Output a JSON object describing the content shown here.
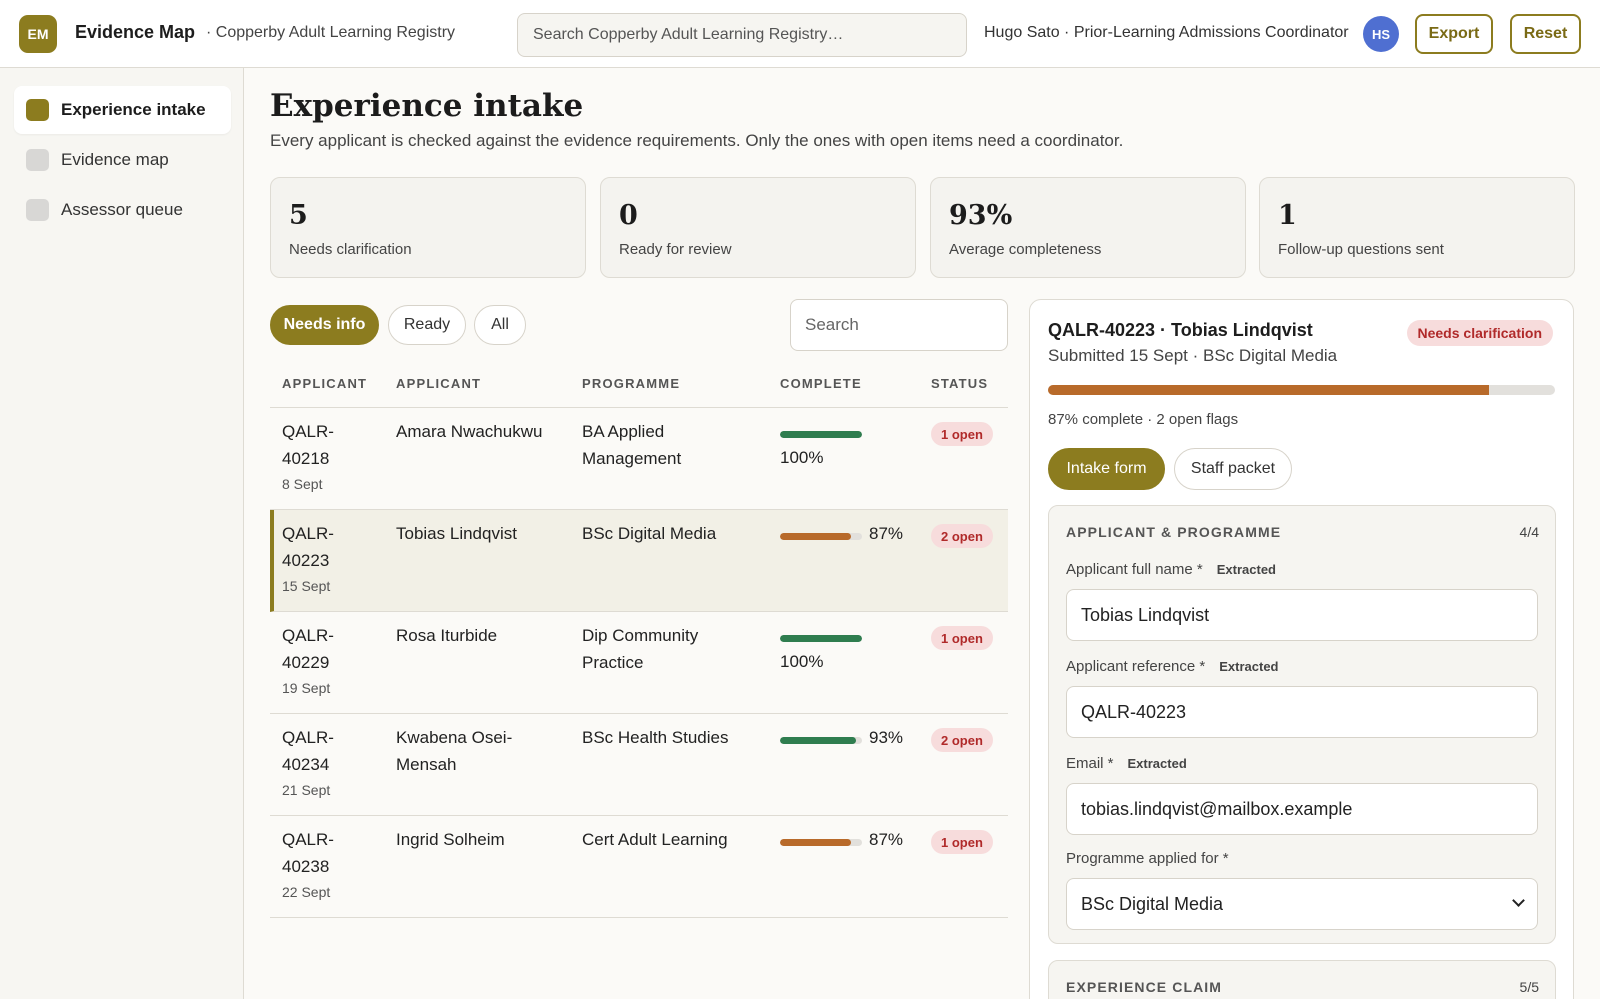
{
  "header": {
    "logo_initials": "EM",
    "app_name": "Evidence Map",
    "registry": "· Copperby Adult Learning Registry",
    "search_placeholder": "Search Copperby Adult Learning Registry…",
    "user": "Hugo Sato · Prior-Learning Admissions Coordinator",
    "avatar_initials": "HS",
    "export_label": "Export",
    "reset_label": "Reset"
  },
  "sidebar": {
    "items": [
      {
        "label": "Experience intake",
        "active": true
      },
      {
        "label": "Evidence map",
        "active": false
      },
      {
        "label": "Assessor queue",
        "active": false
      }
    ]
  },
  "page": {
    "title": "Experience intake",
    "subtitle": "Every applicant is checked against the evidence requirements. Only the ones with open items need a coordinator."
  },
  "stats": [
    {
      "value": "5",
      "label": "Needs clarification"
    },
    {
      "value": "0",
      "label": "Ready for review"
    },
    {
      "value": "93%",
      "label": "Average completeness"
    },
    {
      "value": "1",
      "label": "Follow-up questions sent"
    }
  ],
  "filters": {
    "chips": [
      {
        "label": "Needs info",
        "active": true
      },
      {
        "label": "Ready",
        "active": false
      },
      {
        "label": "All",
        "active": false
      }
    ],
    "search_placeholder": "Search"
  },
  "table": {
    "columns": [
      "APPLICANT",
      "APPLICANT",
      "PROGRAMME",
      "COMPLETE",
      "STATUS"
    ],
    "rows": [
      {
        "id": "QALR-40218",
        "id_line1": "QALR-",
        "id_line2": "40218",
        "date": "8 Sept",
        "name": "Amara Nwachukwu",
        "programme": "BA Applied Management",
        "complete": 100,
        "complete_label": "100%",
        "status": "1 open",
        "selected": false
      },
      {
        "id": "QALR-40223",
        "id_line1": "QALR-",
        "id_line2": "40223",
        "date": "15 Sept",
        "name": "Tobias Lindqvist",
        "programme": "BSc Digital Media",
        "complete": 87,
        "complete_label": "87%",
        "status": "2 open",
        "selected": true
      },
      {
        "id": "QALR-40229",
        "id_line1": "QALR-",
        "id_line2": "40229",
        "date": "19 Sept",
        "name": "Rosa Iturbide",
        "programme": "Dip Community Practice",
        "complete": 100,
        "complete_label": "100%",
        "status": "1 open",
        "selected": false
      },
      {
        "id": "QALR-40234",
        "id_line1": "QALR-",
        "id_line2": "40234",
        "date": "21 Sept",
        "name": "Kwabena Osei-Mensah",
        "programme": "BSc Health Studies",
        "complete": 93,
        "complete_label": "93%",
        "status": "2 open",
        "selected": false
      },
      {
        "id": "QALR-40238",
        "id_line1": "QALR-",
        "id_line2": "40238",
        "date": "22 Sept",
        "name": "Ingrid Solheim",
        "programme": "Cert Adult Learning",
        "complete": 87,
        "complete_label": "87%",
        "status": "1 open",
        "selected": false
      }
    ]
  },
  "detail": {
    "title": "QALR-40223 · Tobias Lindqvist",
    "badge": "Needs clarification",
    "subtitle": "Submitted 15 Sept · BSc Digital Media",
    "complete": 87,
    "progress_text": "87% complete · 2 open flags",
    "tabs": [
      {
        "label": "Intake form",
        "active": true
      },
      {
        "label": "Staff packet",
        "active": false
      }
    ],
    "section1": {
      "title": "APPLICANT & PROGRAMME",
      "count": "4/4",
      "fields": {
        "full_name_label": "Applicant full name *",
        "full_name_tag": "Extracted",
        "full_name_value": "Tobias Lindqvist",
        "reference_label": "Applicant reference *",
        "reference_tag": "Extracted",
        "reference_value": "QALR-40223",
        "email_label": "Email *",
        "email_tag": "Extracted",
        "email_value": "tobias.lindqvist@mailbox.example",
        "programme_label": "Programme applied for *",
        "programme_value": "BSc Digital Media"
      }
    },
    "section2": {
      "title": "EXPERIENCE CLAIM",
      "count": "5/5"
    }
  },
  "colors": {
    "accent": "#8c7c1f",
    "bar_complete": "#2f7d4f",
    "bar_partial": "#b86a2a",
    "badge_bg": "#f7dcdc",
    "badge_text": "#b02a2a"
  }
}
